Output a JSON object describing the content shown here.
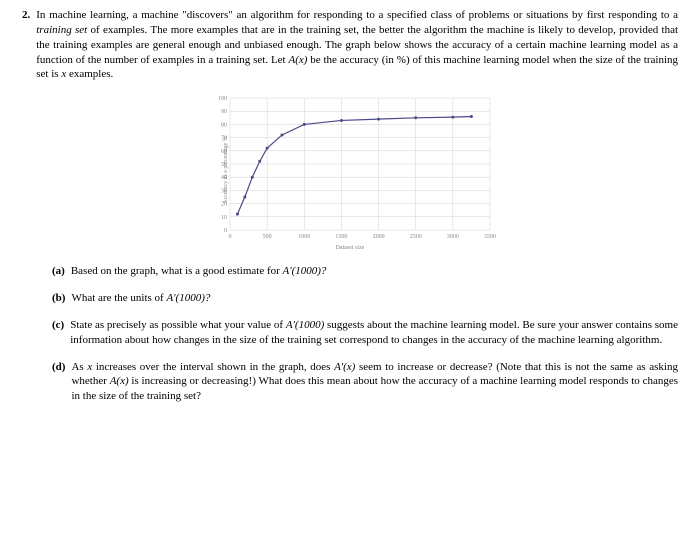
{
  "problem": {
    "number": "2.",
    "text_parts": {
      "p1": "In machine learning, a machine \"discovers\" an algorithm for responding to a specified class of problems or situations by first responding to a ",
      "p2": "training set",
      "p3": " of examples. The more examples that are in the training set, the better the algorithm the machine is likely to develop, provided that the training examples are general enough and unbiased enough. The graph below shows the accuracy of a certain machine learning model as a function of the number of examples in a training set. Let ",
      "p4": "A(x)",
      "p5": " be the accuracy (in %) of this machine learning model when the size of the training set is ",
      "p6": "x",
      "p7": " examples."
    }
  },
  "chart": {
    "type": "line",
    "ylabel": "Accuracy as a percentage %",
    "xlabel": "Dataset size",
    "xlim": [
      0,
      3500
    ],
    "ylim": [
      0,
      100
    ],
    "xticks": [
      0,
      500,
      1000,
      1500,
      2000,
      2500,
      3000,
      3500
    ],
    "yticks": [
      0,
      10,
      20,
      30,
      40,
      50,
      60,
      70,
      80,
      90,
      100
    ],
    "line_color": "#4a4a8a",
    "grid_color": "#d0d0d0",
    "background_color": "#ffffff",
    "data": {
      "x": [
        100,
        200,
        300,
        400,
        500,
        700,
        1000,
        1500,
        2000,
        2500,
        3000,
        3250
      ],
      "y": [
        12,
        25,
        40,
        52,
        62,
        72,
        80,
        83,
        84,
        85,
        85.5,
        86
      ]
    }
  },
  "subparts": {
    "a": {
      "label": "(a)",
      "t1": "Based on the graph, what is a good estimate for ",
      "t2": "A'(1000)?"
    },
    "b": {
      "label": "(b)",
      "t1": "What are the units of ",
      "t2": "A'(1000)?"
    },
    "c": {
      "label": "(c)",
      "t1": "State as precisely as possible what your value of ",
      "t2": "A'(1000)",
      "t3": " suggests about the machine learning model. Be sure your answer contains some information about how changes in the size of the training set correspond to changes in the accuracy of the machine learning algorithm."
    },
    "d": {
      "label": "(d)",
      "t1": "As ",
      "t2": "x",
      "t3": " increases over the interval shown in the graph, does ",
      "t4": "A'(x)",
      "t5": " seem to increase or decrease? (Note that this is not the same as asking whether ",
      "t6": "A(x)",
      "t7": " is increasing or decreasing!) What does this mean about how the accuracy of a machine learning model responds to changes in the size of the training set?"
    }
  }
}
